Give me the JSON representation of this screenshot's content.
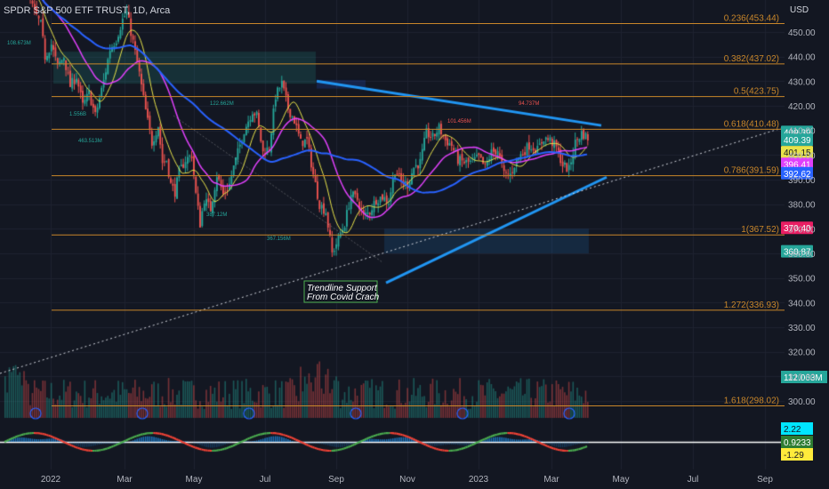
{
  "header": {
    "symbol_title": "SPDR S&P 500 ETF TRUST, 1D, Arca",
    "currency": "USD"
  },
  "colors": {
    "background": "#131722",
    "grid": "#1e2230",
    "fib": "#c8862a",
    "candle_up": "#26a69a",
    "candle_down": "#ef5350",
    "ma_short": "#e8e34a",
    "ma_mid": "#e040fb",
    "ma_long": "#2962ff",
    "trendline": "#2196f3"
  },
  "chart_data": {
    "type": "candlestick",
    "y_axis_label": "USD",
    "y_range": [
      290,
      462
    ],
    "y_ticks": [
      450,
      440,
      430,
      420,
      410,
      400,
      390,
      380,
      370,
      360,
      350,
      340,
      330,
      320,
      310,
      300
    ],
    "x_ticks": [
      "2022",
      "Mar",
      "May",
      "Jul",
      "Sep",
      "Nov",
      "2023",
      "Mar",
      "May",
      "Jul",
      "Sep"
    ],
    "fib_levels": [
      {
        "label": "0.236(453.44)",
        "value": 453.44
      },
      {
        "label": "0.382(437.02)",
        "value": 437.02
      },
      {
        "label": "0.5(423.75)",
        "value": 423.75
      },
      {
        "label": "0.618(410.48)",
        "value": 410.48
      },
      {
        "label": "0.786(391.59)",
        "value": 391.59
      },
      {
        "label": "1(367.52)",
        "value": 367.52
      },
      {
        "label": "1.272(336.93)",
        "value": 336.93
      },
      {
        "label": "1.618(298.02)",
        "value": 298.02
      }
    ],
    "price_badges": [
      {
        "label": "409.39",
        "value": 409.39,
        "bg": "#26a69a",
        "fg": "#ffffff"
      },
      {
        "label": "409.39",
        "value": 406.2,
        "bg": "#26a69a",
        "fg": "#ffffff"
      },
      {
        "label": "401.15",
        "value": 401.15,
        "bg": "#e8e34a",
        "fg": "#131722"
      },
      {
        "label": "396.41",
        "value": 396.41,
        "bg": "#e040fb",
        "fg": "#ffffff"
      },
      {
        "label": "392.62",
        "value": 392.62,
        "bg": "#2962ff",
        "fg": "#ffffff"
      },
      {
        "label": "370.40",
        "value": 370.4,
        "bg": "#e91e63",
        "fg": "#ffffff"
      },
      {
        "label": "360.87",
        "value": 360.87,
        "bg": "#26a69a",
        "fg": "#ffffff"
      }
    ],
    "volume_badge": {
      "label": "112.063M",
      "bg": "#26a69a",
      "fg": "#ffffff"
    },
    "volume_labels": [
      "108.673M",
      "1.556B",
      "463.513M",
      "122.662M",
      "387.12M",
      "367.156M",
      "101.456M",
      "94.737M"
    ],
    "osc_badges": [
      {
        "label": "2.22",
        "bg": "#00e5ff",
        "fg": "#131722"
      },
      {
        "label": "0.9233",
        "bg": "#2e7d32",
        "fg": "#ffffff"
      },
      {
        "label": "-1.29",
        "bg": "#ffeb3b",
        "fg": "#131722"
      }
    ],
    "annotation": {
      "line1": "Trendline Support",
      "line2": "From Covid Crach"
    },
    "series": {
      "close_path": [
        [
          0,
          466
        ],
        [
          4,
          468
        ],
        [
          8,
          470
        ],
        [
          11,
          465
        ],
        [
          14,
          458
        ],
        [
          17,
          453
        ],
        [
          19,
          440
        ],
        [
          22,
          445
        ],
        [
          25,
          436
        ],
        [
          28,
          440
        ],
        [
          31,
          428
        ],
        [
          34,
          432
        ],
        [
          37,
          420
        ],
        [
          40,
          425
        ],
        [
          43,
          416
        ],
        [
          47,
          430
        ],
        [
          50,
          443
        ],
        [
          53,
          447
        ],
        [
          56,
          455
        ],
        [
          58,
          458
        ],
        [
          61,
          446
        ],
        [
          64,
          433
        ],
        [
          67,
          418
        ],
        [
          70,
          405
        ],
        [
          73,
          412
        ],
        [
          75,
          397
        ],
        [
          77,
          398
        ],
        [
          79,
          388
        ],
        [
          81,
          385
        ],
        [
          83,
          393
        ],
        [
          86,
          398
        ],
        [
          89,
          400
        ],
        [
          91,
          384
        ],
        [
          93,
          372
        ],
        [
          95,
          382
        ],
        [
          98,
          378
        ],
        [
          101,
          392
        ],
        [
          104,
          384
        ],
        [
          107,
          388
        ],
        [
          109,
          395
        ],
        [
          112,
          404
        ],
        [
          114,
          410
        ],
        [
          118,
          418
        ],
        [
          120,
          416
        ],
        [
          123,
          401
        ],
        [
          126,
          403
        ],
        [
          129,
          424
        ],
        [
          132,
          429
        ],
        [
          135,
          419
        ],
        [
          138,
          414
        ],
        [
          141,
          405
        ],
        [
          144,
          406
        ],
        [
          147,
          392
        ],
        [
          150,
          380
        ],
        [
          153,
          377
        ],
        [
          156,
          360
        ],
        [
          159,
          366
        ],
        [
          162,
          372
        ],
        [
          165,
          384
        ],
        [
          168,
          382
        ],
        [
          171,
          375
        ],
        [
          174,
          377
        ],
        [
          177,
          382
        ],
        [
          180,
          383
        ],
        [
          183,
          381
        ],
        [
          186,
          394
        ],
        [
          189,
          389
        ],
        [
          192,
          388
        ],
        [
          195,
          395
        ],
        [
          198,
          397
        ],
        [
          201,
          409
        ],
        [
          204,
          407
        ],
        [
          207,
          411
        ],
        [
          210,
          406
        ],
        [
          213,
          404
        ],
        [
          216,
          398
        ],
        [
          219,
          397
        ],
        [
          222,
          397
        ],
        [
          226,
          399
        ],
        [
          229,
          395
        ],
        [
          232,
          401
        ],
        [
          235,
          402
        ],
        [
          238,
          392
        ],
        [
          241,
          392
        ],
        [
          244,
          398
        ],
        [
          247,
          401
        ],
        [
          250,
          404
        ],
        [
          254,
          402
        ],
        [
          257,
          407
        ],
        [
          260,
          406
        ],
        [
          263,
          403
        ],
        [
          266,
          396
        ],
        [
          269,
          394
        ],
        [
          272,
          405
        ],
        [
          275,
          409
        ],
        [
          278,
          407
        ]
      ],
      "close_x_range": [
        0,
        278
      ]
    }
  }
}
